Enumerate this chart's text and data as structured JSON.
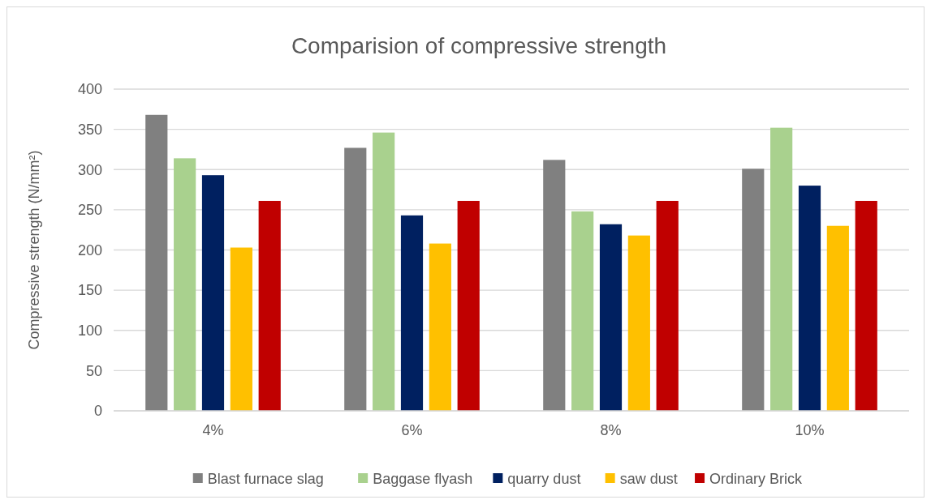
{
  "chart_data": {
    "type": "bar",
    "title": "Comparision of compressive strength",
    "ylabel": "Compressive strength (N/mm²)",
    "categories": [
      "4%",
      "6%",
      "8%",
      "10%"
    ],
    "series": [
      {
        "name": "Blast furnace slag",
        "color": "#808080",
        "values": [
          368,
          327,
          312,
          301
        ]
      },
      {
        "name": "Baggase flyash",
        "color": "#a9d18e",
        "values": [
          314,
          346,
          248,
          352
        ]
      },
      {
        "name": "quarry dust",
        "color": "#002060",
        "values": [
          293,
          243,
          232,
          280
        ]
      },
      {
        "name": "saw dust",
        "color": "#ffc000",
        "values": [
          203,
          208,
          218,
          230
        ]
      },
      {
        "name": "Ordinary Brick",
        "color": "#c00000",
        "values": [
          261,
          261,
          261,
          261
        ]
      }
    ],
    "ylim": [
      0,
      400
    ],
    "yticks": [
      0,
      50,
      100,
      150,
      200,
      250,
      300,
      350,
      400
    ],
    "grid": "y",
    "legend": "bottom"
  }
}
